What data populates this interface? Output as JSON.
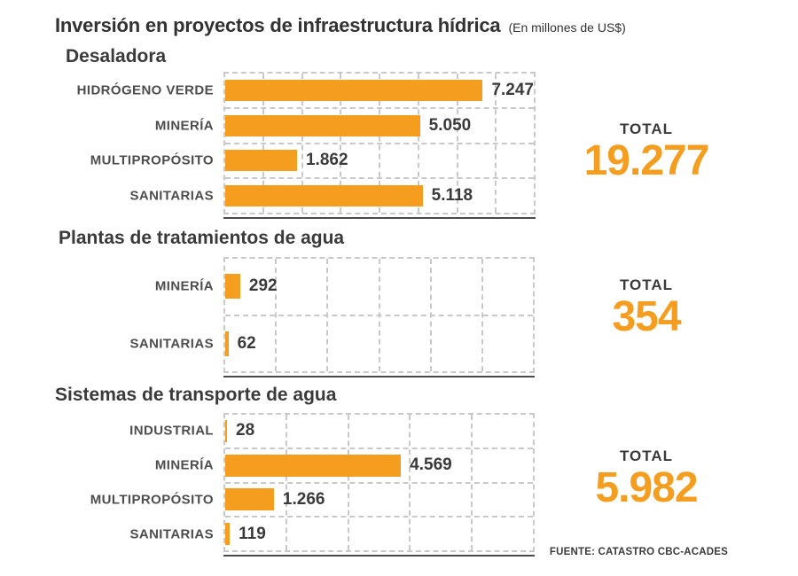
{
  "title": "Inversión en proyectos de infraestructura hídrica",
  "subtitle": "(En millones de US$)",
  "total_label": "TOTAL",
  "source": "FUENTE: CATASTRO CBC-ACADES",
  "colors": {
    "bar_orange": "#F49D1E",
    "grid_dashed": "#C9C9C9",
    "title_text": "#323232",
    "section_heading": "#3A3A3A",
    "category_label": "#4D4D4D",
    "value_label": "#3A3A3A",
    "axis_baseline": "#4A4A4A",
    "background": "#FFFFFF"
  },
  "chart_data": [
    {
      "type": "bar",
      "orientation": "horizontal",
      "title": "Desaladora",
      "categories": [
        "HIDRÓGENO VERDE",
        "MINERÍA",
        "MULTIPROPÓSITO",
        "SANITARIAS"
      ],
      "values": [
        7247,
        5050,
        1862,
        5118
      ],
      "value_labels": [
        "7.247",
        "5.050",
        "1.862",
        "5.118"
      ],
      "xlim": [
        0,
        8000
      ],
      "grid_columns": 8,
      "grid": "dashed",
      "total": "19.277"
    },
    {
      "type": "bar",
      "orientation": "horizontal",
      "title": "Plantas de tratamientos de agua",
      "categories": [
        "MINERÍA",
        "SANITARIAS"
      ],
      "values": [
        292,
        62
      ],
      "value_labels": [
        "292",
        "62"
      ],
      "xlim": [
        0,
        6000
      ],
      "grid_columns": 6,
      "grid": "dashed",
      "total": "354"
    },
    {
      "type": "bar",
      "orientation": "horizontal",
      "title": "Sistemas de transporte de agua",
      "categories": [
        "INDUSTRIAL",
        "MINERÍA",
        "MULTIPROPÓSITO",
        "SANITARIAS"
      ],
      "values": [
        28,
        4569,
        1266,
        119
      ],
      "value_labels": [
        "28",
        "4.569",
        "1.266",
        "119"
      ],
      "xlim": [
        0,
        8000
      ],
      "grid_columns": 5,
      "grid": "dashed",
      "total": "5.982"
    }
  ]
}
